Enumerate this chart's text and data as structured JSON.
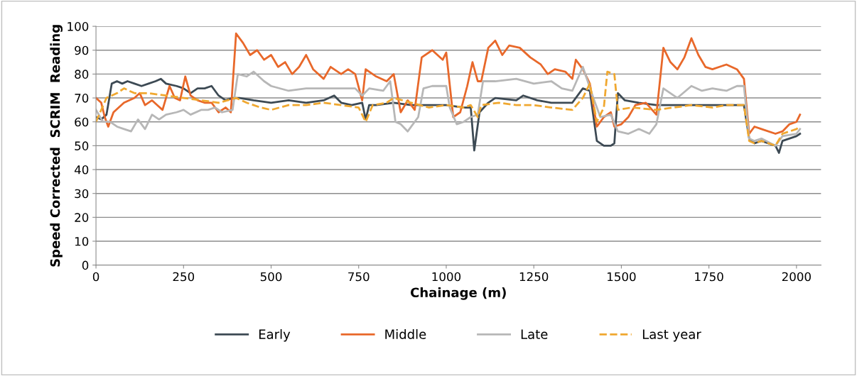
{
  "chart_data": {
    "type": "line",
    "xlabel": "Chainage (m)",
    "ylabel": "Speed Corrected  SCRIM  Reading",
    "xlim": [
      0,
      2070
    ],
    "xticks": [
      0,
      250,
      500,
      750,
      1000,
      1250,
      1500,
      1750,
      2000
    ],
    "ylim": [
      0,
      100
    ],
    "yticks": [
      0,
      10,
      20,
      30,
      40,
      50,
      60,
      70,
      80,
      90,
      100
    ],
    "grid": "y",
    "legend": "bottom",
    "series": [
      {
        "name": "Early",
        "color": "#3d4a54",
        "line_style": "solid",
        "x": [
          0,
          15,
          30,
          45,
          60,
          75,
          90,
          110,
          130,
          150,
          170,
          185,
          200,
          230,
          250,
          270,
          290,
          310,
          330,
          350,
          370,
          390,
          410,
          450,
          500,
          550,
          600,
          650,
          680,
          700,
          730,
          760,
          770,
          780,
          800,
          850,
          900,
          950,
          1000,
          1050,
          1070,
          1080,
          1095,
          1120,
          1140,
          1200,
          1220,
          1260,
          1300,
          1360,
          1390,
          1410,
          1430,
          1450,
          1470,
          1480,
          1490,
          1510,
          1550,
          1600,
          1640,
          1700,
          1760,
          1800,
          1850,
          1865,
          1880,
          1900,
          1940,
          1950,
          1960,
          2000,
          2010
        ],
        "values": [
          62,
          61,
          63,
          76,
          77,
          76,
          77,
          76,
          75,
          76,
          77,
          78,
          76,
          75,
          74,
          72,
          74,
          74,
          75,
          71,
          69,
          70,
          70,
          69,
          68,
          69,
          68,
          69,
          71,
          68,
          67,
          68,
          61,
          67,
          67,
          68,
          67,
          67,
          67,
          66,
          66,
          48,
          64,
          68,
          70,
          69,
          71,
          69,
          68,
          68,
          74,
          73,
          52,
          50,
          50,
          51,
          72,
          69,
          68,
          67,
          67,
          67,
          67,
          67,
          67,
          53,
          51,
          52,
          50,
          47,
          52,
          54,
          55
        ]
      },
      {
        "name": "Middle",
        "color": "#e8682a",
        "line_style": "solid",
        "x": [
          0,
          15,
          25,
          35,
          50,
          80,
          110,
          125,
          140,
          160,
          175,
          190,
          210,
          225,
          240,
          255,
          270,
          290,
          310,
          330,
          350,
          370,
          385,
          400,
          420,
          440,
          460,
          480,
          500,
          520,
          540,
          560,
          580,
          600,
          620,
          650,
          670,
          700,
          720,
          740,
          760,
          770,
          800,
          830,
          850,
          870,
          890,
          910,
          930,
          960,
          990,
          1000,
          1020,
          1040,
          1060,
          1075,
          1090,
          1100,
          1120,
          1140,
          1160,
          1180,
          1210,
          1240,
          1270,
          1290,
          1310,
          1340,
          1360,
          1370,
          1390,
          1410,
          1430,
          1450,
          1470,
          1480,
          1500,
          1520,
          1540,
          1570,
          1600,
          1620,
          1640,
          1660,
          1680,
          1700,
          1720,
          1740,
          1760,
          1800,
          1830,
          1850,
          1865,
          1880,
          1900,
          1940,
          1960,
          1980,
          2000,
          2010
        ],
        "values": [
          70,
          68,
          62,
          58,
          64,
          68,
          70,
          72,
          67,
          69,
          67,
          65,
          75,
          70,
          69,
          79,
          71,
          69,
          68,
          68,
          64,
          66,
          64,
          97,
          93,
          88,
          90,
          86,
          88,
          83,
          85,
          80,
          83,
          88,
          82,
          78,
          83,
          80,
          82,
          80,
          69,
          82,
          79,
          77,
          80,
          64,
          69,
          65,
          87,
          90,
          86,
          89,
          62,
          64,
          75,
          85,
          77,
          77,
          91,
          94,
          88,
          92,
          91,
          87,
          84,
          80,
          82,
          81,
          78,
          86,
          82,
          76,
          58,
          62,
          64,
          58,
          59,
          62,
          67,
          68,
          63,
          91,
          85,
          82,
          87,
          95,
          88,
          83,
          82,
          84,
          82,
          78,
          55,
          58,
          57,
          55,
          56,
          59,
          60,
          63
        ]
      },
      {
        "name": "Late",
        "color": "#b7b7b7",
        "line_style": "solid",
        "x": [
          0,
          20,
          40,
          60,
          80,
          100,
          120,
          140,
          160,
          180,
          200,
          230,
          250,
          270,
          300,
          320,
          340,
          360,
          390,
          405,
          430,
          450,
          480,
          500,
          550,
          600,
          650,
          700,
          740,
          760,
          780,
          820,
          840,
          855,
          870,
          890,
          920,
          935,
          960,
          1000,
          1010,
          1030,
          1050,
          1070,
          1090,
          1105,
          1140,
          1200,
          1250,
          1300,
          1330,
          1360,
          1390,
          1420,
          1440,
          1470,
          1490,
          1520,
          1550,
          1580,
          1600,
          1620,
          1640,
          1660,
          1700,
          1730,
          1760,
          1800,
          1830,
          1850,
          1865,
          1880,
          1900,
          1940,
          1960,
          2000,
          2010
        ],
        "values": [
          65,
          60,
          60,
          58,
          57,
          56,
          61,
          57,
          63,
          61,
          63,
          64,
          65,
          63,
          65,
          65,
          66,
          64,
          65,
          80,
          79,
          81,
          77,
          75,
          73,
          74,
          74,
          74,
          74,
          71,
          74,
          73,
          77,
          60,
          59,
          56,
          62,
          74,
          75,
          75,
          66,
          59,
          60,
          62,
          63,
          77,
          77,
          78,
          76,
          77,
          74,
          73,
          83,
          70,
          62,
          63,
          56,
          55,
          57,
          55,
          59,
          74,
          72,
          70,
          75,
          73,
          74,
          73,
          75,
          75,
          53,
          52,
          53,
          50,
          54,
          55,
          57
        ]
      },
      {
        "name": "Last year",
        "color": "#f0a830",
        "line_style": "dashed",
        "x": [
          0,
          30,
          60,
          80,
          110,
          150,
          200,
          250,
          300,
          350,
          400,
          430,
          470,
          500,
          550,
          600,
          650,
          700,
          750,
          770,
          790,
          830,
          850,
          900,
          950,
          1000,
          1050,
          1070,
          1090,
          1100,
          1150,
          1200,
          1250,
          1300,
          1360,
          1390,
          1410,
          1430,
          1450,
          1460,
          1480,
          1490,
          1530,
          1600,
          1650,
          1700,
          1760,
          1800,
          1850,
          1865,
          1880,
          1900,
          1940,
          1960,
          2000,
          2010
        ],
        "values": [
          60,
          70,
          72,
          74,
          72,
          72,
          71,
          70,
          69,
          68,
          70,
          68,
          66,
          65,
          67,
          67,
          68,
          67,
          66,
          60,
          67,
          68,
          70,
          68,
          66,
          67,
          66,
          67,
          62,
          67,
          68,
          67,
          67,
          66,
          65,
          70,
          76,
          60,
          66,
          81,
          80,
          65,
          66,
          65,
          66,
          67,
          66,
          67,
          67,
          52,
          51,
          52,
          50,
          55,
          57,
          58
        ]
      }
    ]
  }
}
